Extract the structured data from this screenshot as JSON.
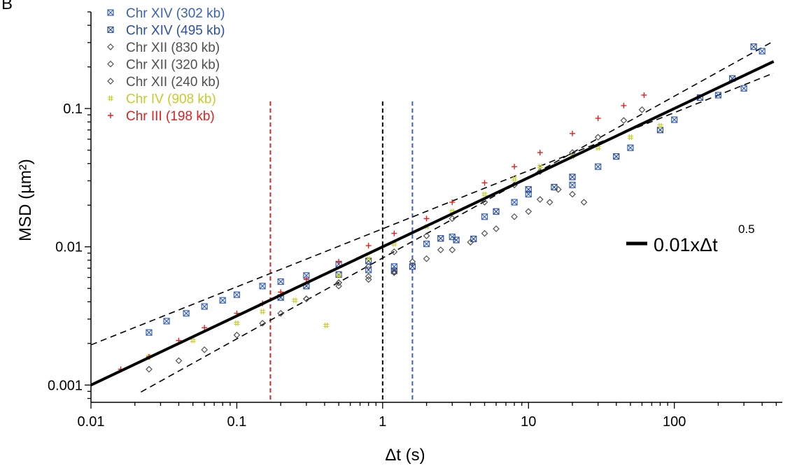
{
  "panel_label": "B",
  "chart_data": {
    "type": "scatter",
    "xlabel": "Δt (s)",
    "ylabel": "MSD (µm²)",
    "xscale": "log",
    "yscale": "log",
    "xlim": [
      0.01,
      550
    ],
    "ylim": [
      0.00075,
      0.5
    ],
    "x_ticks": [
      0.01,
      0.1,
      1,
      10,
      100
    ],
    "x_tick_labels": [
      "0.01",
      "0.1",
      "1",
      "10",
      "100"
    ],
    "y_ticks": [
      0.001,
      0.01,
      0.1
    ],
    "y_tick_labels": [
      "0.001",
      "0.01",
      "0.1"
    ],
    "grid": false,
    "legend_position": "top-left",
    "series": [
      {
        "name": "Chr XIV (302 kb)",
        "color": "#3a62b8",
        "marker": "boxed-x",
        "x": [
          0.025,
          0.033,
          0.045,
          0.06,
          0.08,
          0.1,
          0.15,
          0.2,
          0.3,
          0.5,
          0.8,
          1.2,
          2,
          3,
          5,
          8,
          10,
          20,
          30,
          50,
          100,
          200,
          300,
          400
        ],
        "y": [
          0.0024,
          0.0029,
          0.0033,
          0.0037,
          0.0041,
          0.0045,
          0.0052,
          0.0056,
          0.0062,
          0.0075,
          0.0068,
          0.0072,
          0.0105,
          0.0118,
          0.0165,
          0.021,
          0.024,
          0.028,
          0.038,
          0.052,
          0.083,
          0.125,
          0.14,
          0.26
        ]
      },
      {
        "name": "Chr XIV (495 kb)",
        "color": "#2c4f9e",
        "marker": "boxed-x",
        "x": [
          0.2,
          0.3,
          0.5,
          0.8,
          1.2,
          1.6,
          2.5,
          3.2,
          4.2,
          6,
          10,
          15,
          20,
          40,
          80,
          150,
          250,
          350
        ],
        "y": [
          0.0043,
          0.0052,
          0.0063,
          0.0079,
          0.0067,
          0.0072,
          0.0115,
          0.0112,
          0.0114,
          0.018,
          0.026,
          0.027,
          0.032,
          0.045,
          0.07,
          0.12,
          0.165,
          0.28
        ]
      },
      {
        "name": "Chr XII (830 kb)",
        "color": "#505050",
        "marker": "diamond",
        "x": [
          0.025,
          0.04,
          0.06,
          0.1,
          0.15,
          0.2,
          0.3,
          0.5,
          0.8,
          1.2,
          2,
          3,
          5,
          8,
          12,
          20,
          30,
          45,
          60
        ],
        "y": [
          0.0013,
          0.0015,
          0.0018,
          0.0023,
          0.0028,
          0.0033,
          0.0042,
          0.0055,
          0.0072,
          0.0092,
          0.012,
          0.016,
          0.021,
          0.028,
          0.035,
          0.048,
          0.062,
          0.082,
          0.098
        ]
      },
      {
        "name": "Chr XII (320 kb)",
        "color": "#505050",
        "marker": "diamond",
        "x": [
          0.3,
          0.5,
          0.8,
          1.2,
          2,
          3,
          5,
          8,
          12,
          16,
          20,
          24
        ],
        "y": [
          0.0042,
          0.0052,
          0.0058,
          0.0065,
          0.0082,
          0.0095,
          0.0125,
          0.0165,
          0.022,
          0.026,
          0.024,
          0.021
        ]
      },
      {
        "name": "Chr XII (240 kb)",
        "color": "#505050",
        "marker": "diamond",
        "x": [
          0.5,
          0.8,
          1.2,
          1.6,
          2.5,
          4,
          6,
          10,
          14
        ],
        "y": [
          0.0055,
          0.0061,
          0.0066,
          0.0078,
          0.0095,
          0.0108,
          0.0135,
          0.018,
          0.021
        ]
      },
      {
        "name": "Chr IV (908 kb)",
        "color": "#c7cc2a",
        "marker": "hash",
        "x": [
          0.025,
          0.05,
          0.1,
          0.15,
          0.25,
          0.41,
          0.5,
          0.8,
          1.2,
          2,
          3,
          5,
          8,
          12,
          20,
          30,
          50,
          80
        ],
        "y": [
          0.0016,
          0.0021,
          0.0028,
          0.0034,
          0.0041,
          0.0027,
          0.0062,
          0.0082,
          0.0105,
          0.014,
          0.018,
          0.024,
          0.031,
          0.038,
          0.045,
          0.052,
          0.062,
          0.075
        ]
      },
      {
        "name": "Chr III (198 kb)",
        "color": "#e02020",
        "marker": "plus",
        "x": [
          0.016,
          0.025,
          0.04,
          0.06,
          0.1,
          0.15,
          0.2,
          0.3,
          0.5,
          0.8,
          1.2,
          2,
          3,
          5,
          8,
          12,
          20,
          30,
          45,
          62
        ],
        "y": [
          0.0013,
          0.0016,
          0.0021,
          0.0026,
          0.0033,
          0.0039,
          0.0047,
          0.0058,
          0.0078,
          0.0102,
          0.0125,
          0.016,
          0.021,
          0.029,
          0.038,
          0.048,
          0.066,
          0.085,
          0.105,
          0.125
        ]
      }
    ],
    "fit_line": {
      "label": "0.01xΔt",
      "exponent": "0.5",
      "coefficient": 0.01,
      "power": 0.5,
      "x_range": [
        0.01,
        480
      ],
      "color": "#000000"
    },
    "dashed_envelopes": [
      {
        "coefficient": 0.0135,
        "power": 0.42,
        "x_range": [
          0.01,
          480
        ]
      },
      {
        "coefficient": 0.0083,
        "power": 0.585,
        "x_range": [
          0.022,
          480
        ]
      }
    ],
    "vertical_lines": [
      {
        "x": 0.17,
        "color": "#e02020"
      },
      {
        "x": 1.0,
        "color": "#000000"
      },
      {
        "x": 1.6,
        "color": "#3a62b8"
      }
    ]
  }
}
